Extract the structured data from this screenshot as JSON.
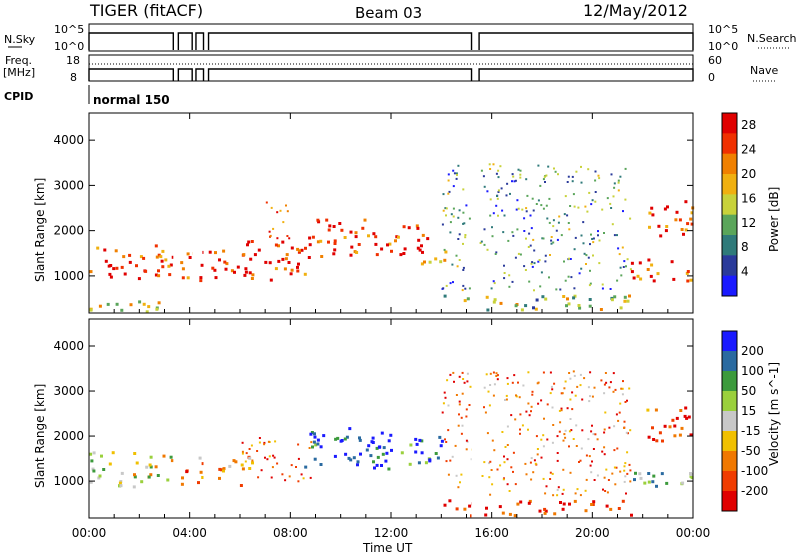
{
  "header": {
    "station": "TIGER (fitACF)",
    "beam": "Beam 03",
    "date": "12/May/2012"
  },
  "status_panels": {
    "nsky_label": "N.Sky",
    "nsky_ticks": [
      "10^5",
      "10^0"
    ],
    "nsearch_label": "N.Search",
    "nsearch_ticks": [
      "10^5",
      "10^0"
    ],
    "freq_label_1": "Freq.",
    "freq_label_2": "[MHz]",
    "freq_ticks": [
      "18",
      "8"
    ],
    "nave_label": "Nave",
    "nave_ticks": [
      "60",
      "0"
    ],
    "cpid_label": "CPID",
    "cpid_value": "normal 150"
  },
  "x_axis": {
    "label": "Time UT",
    "ticks": [
      "00:00",
      "04:00",
      "08:00",
      "12:00",
      "16:00",
      "20:00",
      "00:00"
    ]
  },
  "colors": {
    "power_scale": [
      "#1a1aff",
      "#2a3a9a",
      "#2f7a7a",
      "#5aa55a",
      "#c8d23a",
      "#f0b010",
      "#f08000",
      "#f03000",
      "#e00000"
    ],
    "velocity_scale": [
      "#e00000",
      "#f03c00",
      "#f07800",
      "#f0c000",
      "#c8c8c8",
      "#9ad03c",
      "#3c9a3c",
      "#2a6aa0",
      "#1a1aff"
    ]
  },
  "chart_data": [
    {
      "type": "heatmap",
      "name": "power",
      "xlabel": "Time UT",
      "ylabel": "Slant Range [km]",
      "xlim_hours": [
        0,
        24
      ],
      "ylim": [
        180,
        4600
      ],
      "y_ticks": [
        1000,
        2000,
        3000,
        4000
      ],
      "colorbar_label": "Power [dB]",
      "colorbar_ticks": [
        4,
        8,
        12,
        16,
        20,
        24,
        28
      ],
      "colorbar_range": [
        0,
        30
      ],
      "gaps_hours": [
        [
          3.35,
          3.55
        ],
        [
          4.1,
          4.25
        ],
        [
          4.55,
          4.75
        ],
        [
          15.2,
          15.5
        ]
      ],
      "features": [
        {
          "t": [
            0.0,
            3.3
          ],
          "range": [
            900,
            1700
          ],
          "value": 26
        },
        {
          "t": [
            0.0,
            3.3
          ],
          "range": [
            200,
            500
          ],
          "value": 14
        },
        {
          "t": [
            3.6,
            6.5
          ],
          "range": [
            900,
            1600
          ],
          "value": 25
        },
        {
          "t": [
            6.0,
            8.8
          ],
          "range": [
            900,
            1800
          ],
          "value": 27
        },
        {
          "t": [
            7.0,
            8.0
          ],
          "range": [
            1800,
            2800
          ],
          "value": 25
        },
        {
          "t": [
            8.5,
            11.0
          ],
          "range": [
            1400,
            2300
          ],
          "value": 27
        },
        {
          "t": [
            11.0,
            13.5
          ],
          "range": [
            1500,
            2200
          ],
          "value": 26
        },
        {
          "t": [
            13.0,
            14.2
          ],
          "range": [
            1200,
            1700
          ],
          "value": 20
        },
        {
          "t": [
            14.0,
            21.5
          ],
          "range": [
            250,
            600
          ],
          "value": 14
        },
        {
          "t": [
            14.0,
            21.5
          ],
          "range": [
            700,
            3500
          ],
          "value": 10
        },
        {
          "t": [
            21.5,
            24.0
          ],
          "range": [
            900,
            1400
          ],
          "value": 25
        },
        {
          "t": [
            22.0,
            24.0
          ],
          "range": [
            1900,
            2700
          ],
          "value": 26
        }
      ]
    },
    {
      "type": "heatmap",
      "name": "velocity",
      "xlabel": "Time UT",
      "ylabel": "Slant Range [km]",
      "xlim_hours": [
        0,
        24
      ],
      "ylim": [
        180,
        4600
      ],
      "y_ticks": [
        1000,
        2000,
        3000,
        4000
      ],
      "colorbar_label": "Velocity [m s^-1]",
      "colorbar_ticks": [
        "200",
        "100",
        "50",
        "15",
        "-15",
        "-50",
        "-100",
        "-200"
      ],
      "colorbar_range": [
        -250,
        250
      ],
      "gaps_hours": [
        [
          3.35,
          3.55
        ],
        [
          4.1,
          4.25
        ],
        [
          4.55,
          4.75
        ],
        [
          15.2,
          15.5
        ]
      ],
      "features": [
        {
          "t": [
            0.0,
            3.3
          ],
          "range": [
            900,
            1700
          ],
          "value": 0
        },
        {
          "t": [
            3.6,
            6.5
          ],
          "range": [
            900,
            1600
          ],
          "value": -100
        },
        {
          "t": [
            6.0,
            8.8
          ],
          "range": [
            1000,
            2000
          ],
          "value": -150
        },
        {
          "t": [
            8.5,
            12.0
          ],
          "range": [
            1300,
            2200
          ],
          "value": 200
        },
        {
          "t": [
            11.0,
            14.0
          ],
          "range": [
            1400,
            2100
          ],
          "value": 180
        },
        {
          "t": [
            14.0,
            21.5
          ],
          "range": [
            250,
            600
          ],
          "value": -200
        },
        {
          "t": [
            14.0,
            21.5
          ],
          "range": [
            700,
            3500
          ],
          "value": -120
        },
        {
          "t": [
            21.5,
            24.0
          ],
          "range": [
            900,
            1400
          ],
          "value": 100
        },
        {
          "t": [
            22.0,
            24.0
          ],
          "range": [
            1900,
            2700
          ],
          "value": -200
        }
      ]
    }
  ]
}
